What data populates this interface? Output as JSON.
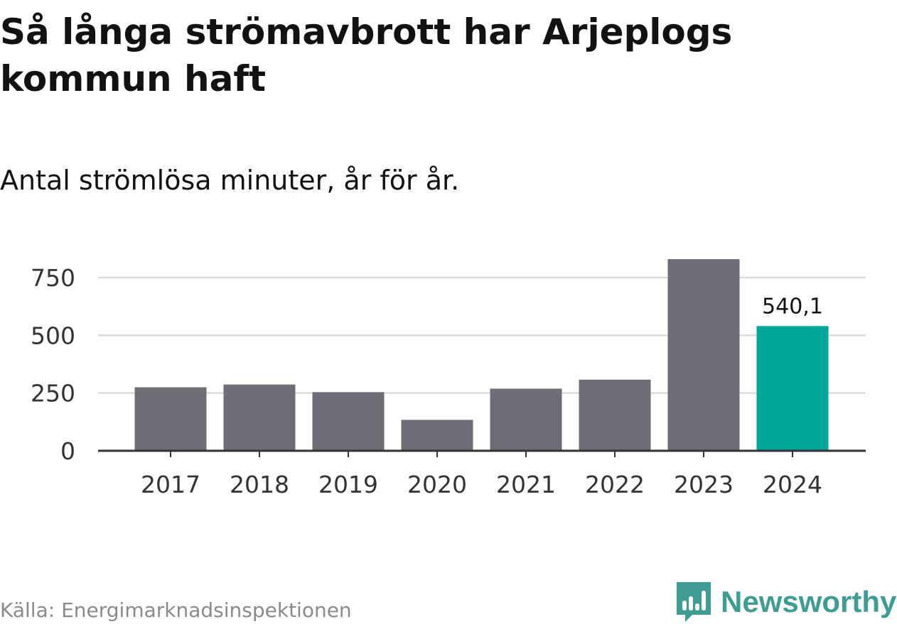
{
  "title": "Så långa strömavbrott har Arjeplogs kommun haft",
  "subtitle": "Antal strömlösa minuter, år för år.",
  "source": "Källa: Energimarknadsinspektionen",
  "brand": {
    "name": "Newsworthy",
    "icon": "newsworthy-logo-icon",
    "color": "#3f9c92"
  },
  "colors": {
    "bar": "#6f6e76",
    "highlight": "#00a69a",
    "grid": "#dcdcdc",
    "axis": "#333333",
    "text": "#333333"
  },
  "chart_data": {
    "type": "bar",
    "title": "Så långa strömavbrott har Arjeplogs kommun haft",
    "subtitle": "Antal strömlösa minuter, år för år.",
    "xlabel": "",
    "ylabel": "",
    "categories": [
      "2017",
      "2018",
      "2019",
      "2020",
      "2021",
      "2022",
      "2023",
      "2024"
    ],
    "values": [
      275,
      287,
      254,
      134,
      269,
      308,
      830,
      540.1
    ],
    "ylim": [
      0,
      830
    ],
    "yticks": [
      0,
      250,
      500,
      750
    ],
    "ytick_labels": [
      "0",
      "250",
      "500",
      "750"
    ],
    "highlight_index": 7,
    "annotations": [
      {
        "category": "2024",
        "label": "540,1"
      }
    ],
    "grid": true,
    "legend": "none"
  }
}
